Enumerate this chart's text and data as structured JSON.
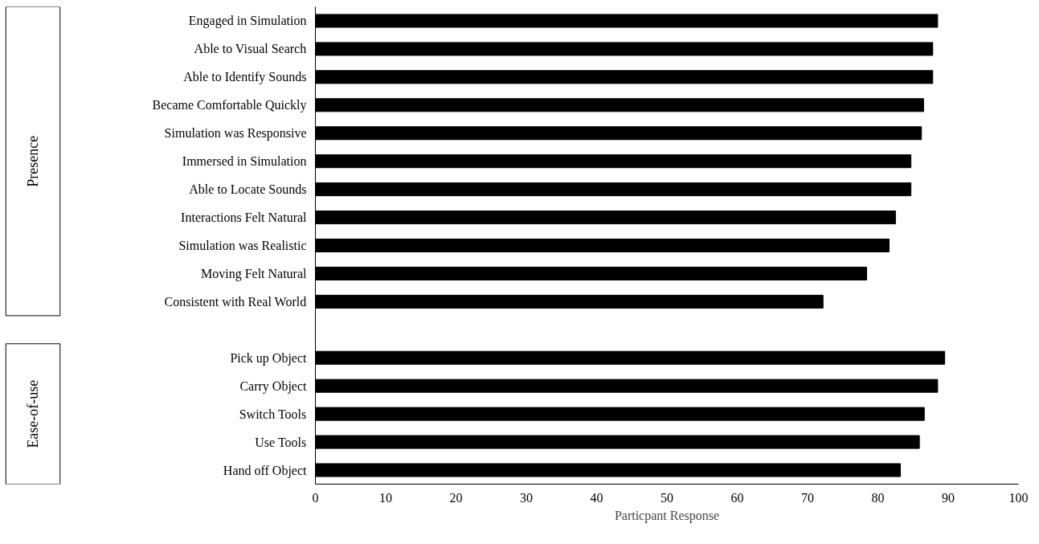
{
  "chart_data": {
    "type": "bar",
    "orientation": "horizontal",
    "xlabel": "Particpant Response",
    "categories": [
      "Engaged in Simulation",
      "Able to Visual Search",
      "Able to Identify Sounds",
      "Became Comfortable Quickly",
      "Simulation was Responsive",
      "Immersed in Simulation",
      "Able to Locate Sounds",
      "Interactions Felt Natural",
      "Simulation was Realistic",
      "Moving Felt Natural",
      "Consistent with Real World",
      null,
      "Pick up Object",
      "Carry Object",
      "Switch Tools",
      "Use Tools",
      "Hand off Object"
    ],
    "values": [
      88.5,
      87.8,
      87.8,
      86.5,
      86.2,
      84.7,
      84.7,
      82.5,
      81.6,
      78.4,
      72.2,
      null,
      89.5,
      88.5,
      86.6,
      85.9,
      83.2
    ],
    "color": "#000000",
    "xlim": [
      0,
      100
    ],
    "xticks": [
      0,
      10,
      20,
      30,
      40,
      50,
      60,
      70,
      80,
      90,
      100
    ],
    "grid": false,
    "annotations": [
      "Presence",
      "Ease-of-use"
    ]
  }
}
